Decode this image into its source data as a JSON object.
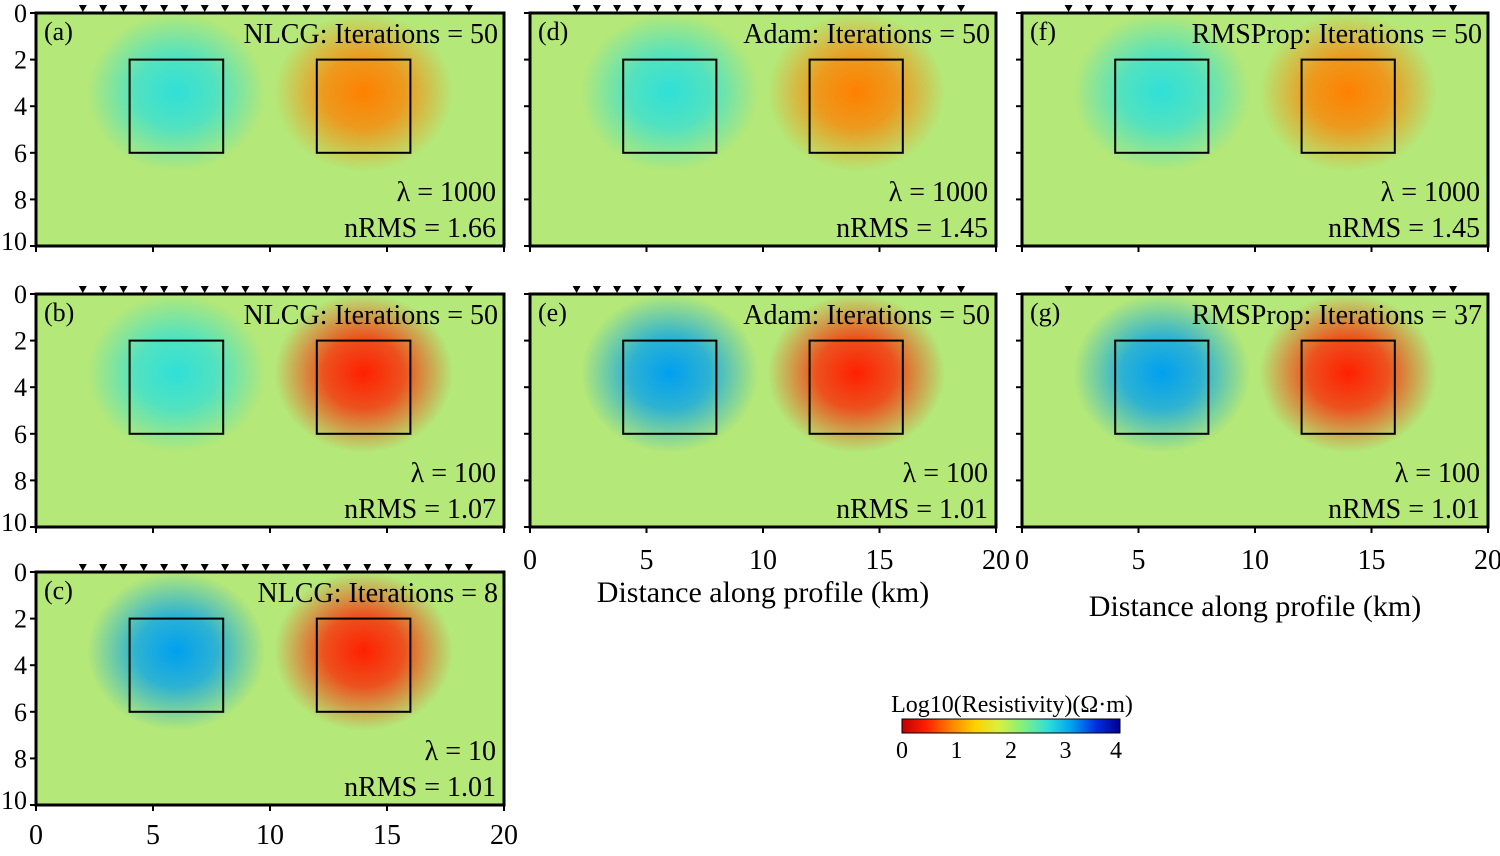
{
  "figure": {
    "xlabel": "Distance along profile (km)",
    "colorbar": {
      "label": "Log10(Resistivity)(Ω·m)",
      "ticks": [
        "0",
        "1",
        "2",
        "3",
        "4"
      ],
      "colors": [
        "#c00000",
        "#ff2000",
        "#ff8000",
        "#ffd000",
        "#d8f040",
        "#80f080",
        "#30e0d8",
        "#00a0f0",
        "#0030e0",
        "#000090"
      ]
    },
    "x_ticks": [
      "0",
      "5",
      "10",
      "15",
      "20"
    ],
    "y_ticks": [
      "0",
      "2",
      "4",
      "6",
      "8",
      "10"
    ]
  },
  "chart_data": [
    {
      "type": "heatmap",
      "panel": "(a)",
      "method": "NLCG",
      "title": "NLCG: Iterations = 50",
      "lambda_text": "λ = 1000",
      "nrms_text": "nRMS = 1.66",
      "iterations": 50,
      "lambda": 1000,
      "nrms": 1.66,
      "xlim": [
        0,
        20
      ],
      "ylim": [
        10,
        0
      ],
      "background_log10_rho": 2,
      "anomaly_boxes_km": [
        {
          "x": [
            4,
            8
          ],
          "z": [
            2,
            6
          ],
          "log10_rho": 2.7
        },
        {
          "x": [
            12,
            16
          ],
          "z": [
            2,
            6
          ],
          "log10_rho": 1.1
        }
      ]
    },
    {
      "type": "heatmap",
      "panel": "(b)",
      "method": "NLCG",
      "title": "NLCG: Iterations = 50",
      "lambda_text": "λ = 100",
      "nrms_text": "nRMS = 1.07",
      "iterations": 50,
      "lambda": 100,
      "nrms": 1.07,
      "xlim": [
        0,
        20
      ],
      "ylim": [
        10,
        0
      ],
      "background_log10_rho": 2,
      "anomaly_boxes_km": [
        {
          "x": [
            4,
            8
          ],
          "z": [
            2,
            6
          ],
          "log10_rho": 2.8
        },
        {
          "x": [
            12,
            16
          ],
          "z": [
            2,
            6
          ],
          "log10_rho": 0.6
        }
      ]
    },
    {
      "type": "heatmap",
      "panel": "(c)",
      "method": "NLCG",
      "title": "NLCG: Iterations = 8",
      "lambda_text": "λ = 10",
      "nrms_text": "nRMS = 1.01",
      "iterations": 8,
      "lambda": 10,
      "nrms": 1.01,
      "xlim": [
        0,
        20
      ],
      "ylim": [
        10,
        0
      ],
      "background_log10_rho": 2,
      "anomaly_boxes_km": [
        {
          "x": [
            4,
            8
          ],
          "z": [
            2,
            6
          ],
          "log10_rho": 2.9
        },
        {
          "x": [
            12,
            16
          ],
          "z": [
            2,
            6
          ],
          "log10_rho": 0.5
        }
      ]
    },
    {
      "type": "heatmap",
      "panel": "(d)",
      "method": "Adam",
      "title": "Adam: Iterations = 50",
      "lambda_text": "λ = 1000",
      "nrms_text": "nRMS = 1.45",
      "iterations": 50,
      "lambda": 1000,
      "nrms": 1.45,
      "xlim": [
        0,
        20
      ],
      "ylim": [
        10,
        0
      ],
      "background_log10_rho": 2,
      "anomaly_boxes_km": [
        {
          "x": [
            4,
            8
          ],
          "z": [
            2,
            6
          ],
          "log10_rho": 2.7
        },
        {
          "x": [
            12,
            16
          ],
          "z": [
            2,
            6
          ],
          "log10_rho": 1.0
        }
      ]
    },
    {
      "type": "heatmap",
      "panel": "(e)",
      "method": "Adam",
      "title": "Adam: Iterations = 50",
      "lambda_text": "λ = 100",
      "nrms_text": "nRMS = 1.01",
      "iterations": 50,
      "lambda": 100,
      "nrms": 1.01,
      "xlim": [
        0,
        20
      ],
      "ylim": [
        10,
        0
      ],
      "background_log10_rho": 2,
      "anomaly_boxes_km": [
        {
          "x": [
            4,
            8
          ],
          "z": [
            2,
            6
          ],
          "log10_rho": 3.0
        },
        {
          "x": [
            12,
            16
          ],
          "z": [
            2,
            6
          ],
          "log10_rho": 0.5
        }
      ]
    },
    {
      "type": "heatmap",
      "panel": "(f)",
      "method": "RMSProp",
      "title": "RMSProp: Iterations = 50",
      "lambda_text": "λ = 1000",
      "nrms_text": "nRMS = 1.45",
      "iterations": 50,
      "lambda": 1000,
      "nrms": 1.45,
      "xlim": [
        0,
        20
      ],
      "ylim": [
        10,
        0
      ],
      "background_log10_rho": 2,
      "anomaly_boxes_km": [
        {
          "x": [
            4,
            8
          ],
          "z": [
            2,
            6
          ],
          "log10_rho": 2.7
        },
        {
          "x": [
            12,
            16
          ],
          "z": [
            2,
            6
          ],
          "log10_rho": 1.0
        }
      ]
    },
    {
      "type": "heatmap",
      "panel": "(g)",
      "method": "RMSProp",
      "title": "RMSProp: Iterations = 37",
      "lambda_text": "λ = 100",
      "nrms_text": "nRMS = 1.01",
      "iterations": 37,
      "lambda": 100,
      "nrms": 1.01,
      "xlim": [
        0,
        20
      ],
      "ylim": [
        10,
        0
      ],
      "background_log10_rho": 2,
      "anomaly_boxes_km": [
        {
          "x": [
            4,
            8
          ],
          "z": [
            2,
            6
          ],
          "log10_rho": 3.0
        },
        {
          "x": [
            12,
            16
          ],
          "z": [
            2,
            6
          ],
          "log10_rho": 0.5
        }
      ]
    }
  ]
}
